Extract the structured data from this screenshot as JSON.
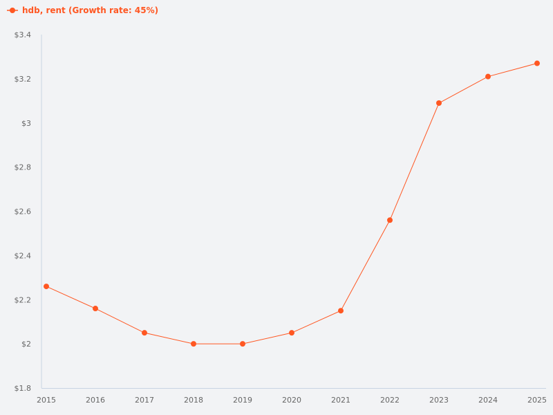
{
  "legend": {
    "label": "hdb, rent (Growth rate: 45%)",
    "icon": "line-dot-icon"
  },
  "colors": {
    "series": "#ff5722",
    "axis": "#c8d4e3",
    "background": "#f2f3f5"
  },
  "chart_data": {
    "type": "line",
    "title": "",
    "xlabel": "",
    "ylabel": "",
    "x": [
      "2015",
      "2016",
      "2017",
      "2018",
      "2019",
      "2020",
      "2021",
      "2022",
      "2023",
      "2024",
      "2025"
    ],
    "series": [
      {
        "name": "hdb, rent (Growth rate: 45%)",
        "values": [
          2.26,
          2.16,
          2.05,
          2.0,
          2.0,
          2.05,
          2.15,
          2.56,
          3.09,
          3.21,
          3.27
        ]
      }
    ],
    "ylim": [
      1.8,
      3.4
    ],
    "yticks": [
      1.8,
      2.0,
      2.2,
      2.4,
      2.6,
      2.8,
      3.0,
      3.2,
      3.4
    ],
    "ytick_labels": [
      "$1.8",
      "$2",
      "$2.2",
      "$2.4",
      "$2.6",
      "$2.8",
      "$3",
      "$3.2",
      "$3.4"
    ],
    "grid": false,
    "legend_position": "top-left"
  }
}
